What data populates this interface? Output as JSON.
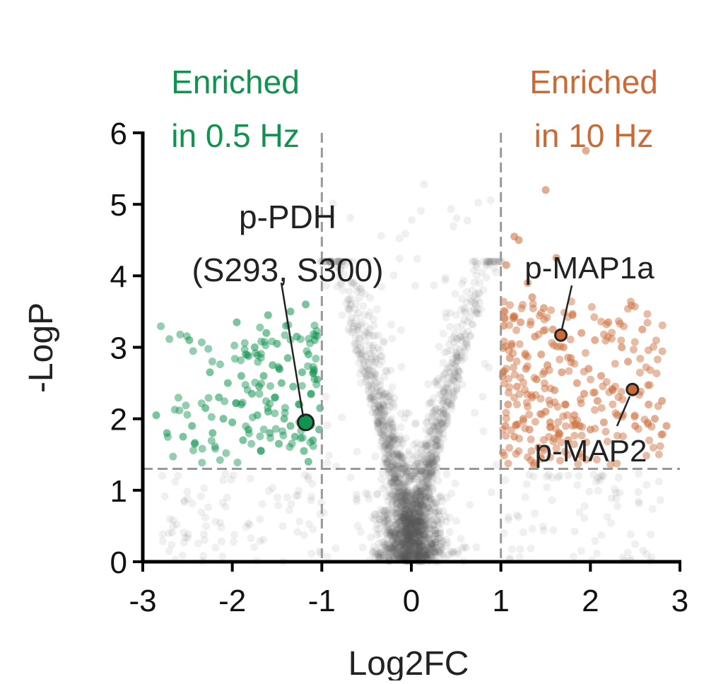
{
  "chart_data": {
    "type": "scatter",
    "xlabel": "Log2FC",
    "ylabel": "-LogP",
    "xlim": [
      -3,
      3
    ],
    "ylim": [
      0,
      6
    ],
    "x_ticks": [
      -3,
      -2,
      -1,
      0,
      1,
      2,
      3
    ],
    "y_ticks": [
      0,
      1,
      2,
      3,
      4,
      5,
      6
    ],
    "x_tick_labels": [
      "-3",
      "-2",
      "-1",
      "0",
      "1",
      "2",
      "3"
    ],
    "y_tick_labels": [
      "0",
      "1",
      "2",
      "3",
      "4",
      "5",
      "6"
    ],
    "fc_thresholds": [
      -1,
      1
    ],
    "p_threshold": 1.3,
    "grid": false,
    "region_labels": {
      "left": {
        "line1": "Enriched",
        "line2": "in 0.5 Hz",
        "color": "#10934f"
      },
      "right": {
        "line1": "Enriched",
        "line2": "in 10 Hz",
        "color": "#cc6a36"
      }
    },
    "colors": {
      "enriched_low": "#10934f",
      "enriched_high": "#cc6a36",
      "non_significant": "#555555",
      "threshold_line": "#999999",
      "pdh_label": "#0d6e3c"
    },
    "highlighted": [
      {
        "label_line1": "p-PDH",
        "label_line2": "(S293, S300)",
        "x": -1.18,
        "y": 1.95,
        "group": "low"
      },
      {
        "label_line1": "p-MAP1a",
        "label_line2": "",
        "x": 1.67,
        "y": 3.17,
        "group": "high"
      },
      {
        "label_line1": "p-MAP2",
        "label_line2": "",
        "x": 2.47,
        "y": 2.41,
        "group": "high"
      }
    ],
    "series_low_sample": [
      [
        -2.85,
        2.05
      ],
      [
        -2.73,
        1.8
      ],
      [
        -2.55,
        1.75
      ],
      [
        -2.48,
        3.1
      ],
      [
        -2.45,
        1.9
      ],
      [
        -2.42,
        1.65
      ],
      [
        -2.3,
        2.15
      ],
      [
        -2.25,
        2.65
      ],
      [
        -2.22,
        1.8
      ],
      [
        -2.15,
        2.3
      ],
      [
        -2.05,
        2.5
      ],
      [
        -2.0,
        1.95
      ],
      [
        -1.95,
        3.35
      ],
      [
        -1.9,
        2.2
      ],
      [
        -1.88,
        1.7
      ],
      [
        -1.85,
        2.9
      ],
      [
        -1.82,
        1.85
      ],
      [
        -1.78,
        2.35
      ],
      [
        -1.75,
        3.0
      ],
      [
        -1.72,
        2.05
      ],
      [
        -1.68,
        1.55
      ],
      [
        -1.65,
        2.6
      ],
      [
        -1.62,
        3.2
      ],
      [
        -1.6,
        2.1
      ],
      [
        -1.58,
        1.8
      ],
      [
        -1.55,
        2.75
      ],
      [
        -1.52,
        2.3
      ],
      [
        -1.5,
        3.05
      ],
      [
        -1.48,
        1.65
      ],
      [
        -1.45,
        2.5
      ],
      [
        -1.42,
        2.0
      ],
      [
        -1.4,
        3.3
      ],
      [
        -1.38,
        2.85
      ],
      [
        -1.35,
        1.9
      ],
      [
        -1.32,
        2.45
      ],
      [
        -1.3,
        1.75
      ],
      [
        -1.28,
        3.15
      ],
      [
        -1.25,
        2.2
      ],
      [
        -1.22,
        2.65
      ],
      [
        -1.2,
        1.55
      ],
      [
        -1.18,
        3.6
      ],
      [
        -1.15,
        2.9
      ],
      [
        -1.12,
        2.35
      ],
      [
        -1.1,
        1.7
      ],
      [
        -1.08,
        3.1
      ],
      [
        -1.05,
        2.55
      ],
      [
        -1.03,
        1.85
      ],
      [
        -1.02,
        2.15
      ],
      [
        -1.35,
        3.5
      ],
      [
        -1.6,
        3.45
      ],
      [
        -1.9,
        2.6
      ],
      [
        -2.1,
        2.0
      ],
      [
        -1.7,
        2.45
      ],
      [
        -1.15,
        1.4
      ]
    ],
    "series_high_sample": [
      [
        1.02,
        2.6
      ],
      [
        1.03,
        3.3
      ],
      [
        1.05,
        1.9
      ],
      [
        1.06,
        4.15
      ],
      [
        1.08,
        2.2
      ],
      [
        1.1,
        2.85
      ],
      [
        1.12,
        3.05
      ],
      [
        1.15,
        1.75
      ],
      [
        1.18,
        2.45
      ],
      [
        1.2,
        4.5
      ],
      [
        1.22,
        3.35
      ],
      [
        1.25,
        2.0
      ],
      [
        1.28,
        2.7
      ],
      [
        1.3,
        3.9
      ],
      [
        1.32,
        1.85
      ],
      [
        1.35,
        2.3
      ],
      [
        1.38,
        3.15
      ],
      [
        1.4,
        2.55
      ],
      [
        1.42,
        1.6
      ],
      [
        1.45,
        2.9
      ],
      [
        1.48,
        3.55
      ],
      [
        1.5,
        2.1
      ],
      [
        1.52,
        2.75
      ],
      [
        1.55,
        1.95
      ],
      [
        1.58,
        3.25
      ],
      [
        1.6,
        2.4
      ],
      [
        1.62,
        4.25
      ],
      [
        1.65,
        1.8
      ],
      [
        1.68,
        2.65
      ],
      [
        1.7,
        3.0
      ],
      [
        1.72,
        2.2
      ],
      [
        1.75,
        1.7
      ],
      [
        1.78,
        2.85
      ],
      [
        1.8,
        3.45
      ],
      [
        1.82,
        2.05
      ],
      [
        1.85,
        2.5
      ],
      [
        1.88,
        1.9
      ],
      [
        1.9,
        3.2
      ],
      [
        1.93,
        2.35
      ],
      [
        1.95,
        5.75
      ],
      [
        1.98,
        2.7
      ],
      [
        2.0,
        1.85
      ],
      [
        2.05,
        3.1
      ],
      [
        2.08,
        2.25
      ],
      [
        2.12,
        2.6
      ],
      [
        2.15,
        1.95
      ],
      [
        2.2,
        3.35
      ],
      [
        2.25,
        2.4
      ],
      [
        2.3,
        2.05
      ],
      [
        2.35,
        3.0
      ],
      [
        2.42,
        2.8
      ],
      [
        2.5,
        1.9
      ],
      [
        2.58,
        3.25
      ],
      [
        2.65,
        2.2
      ],
      [
        2.72,
        2.0
      ],
      [
        2.8,
        2.25
      ],
      [
        2.85,
        1.9
      ],
      [
        1.5,
        5.2
      ],
      [
        1.15,
        4.55
      ],
      [
        1.35,
        3.7
      ]
    ]
  }
}
